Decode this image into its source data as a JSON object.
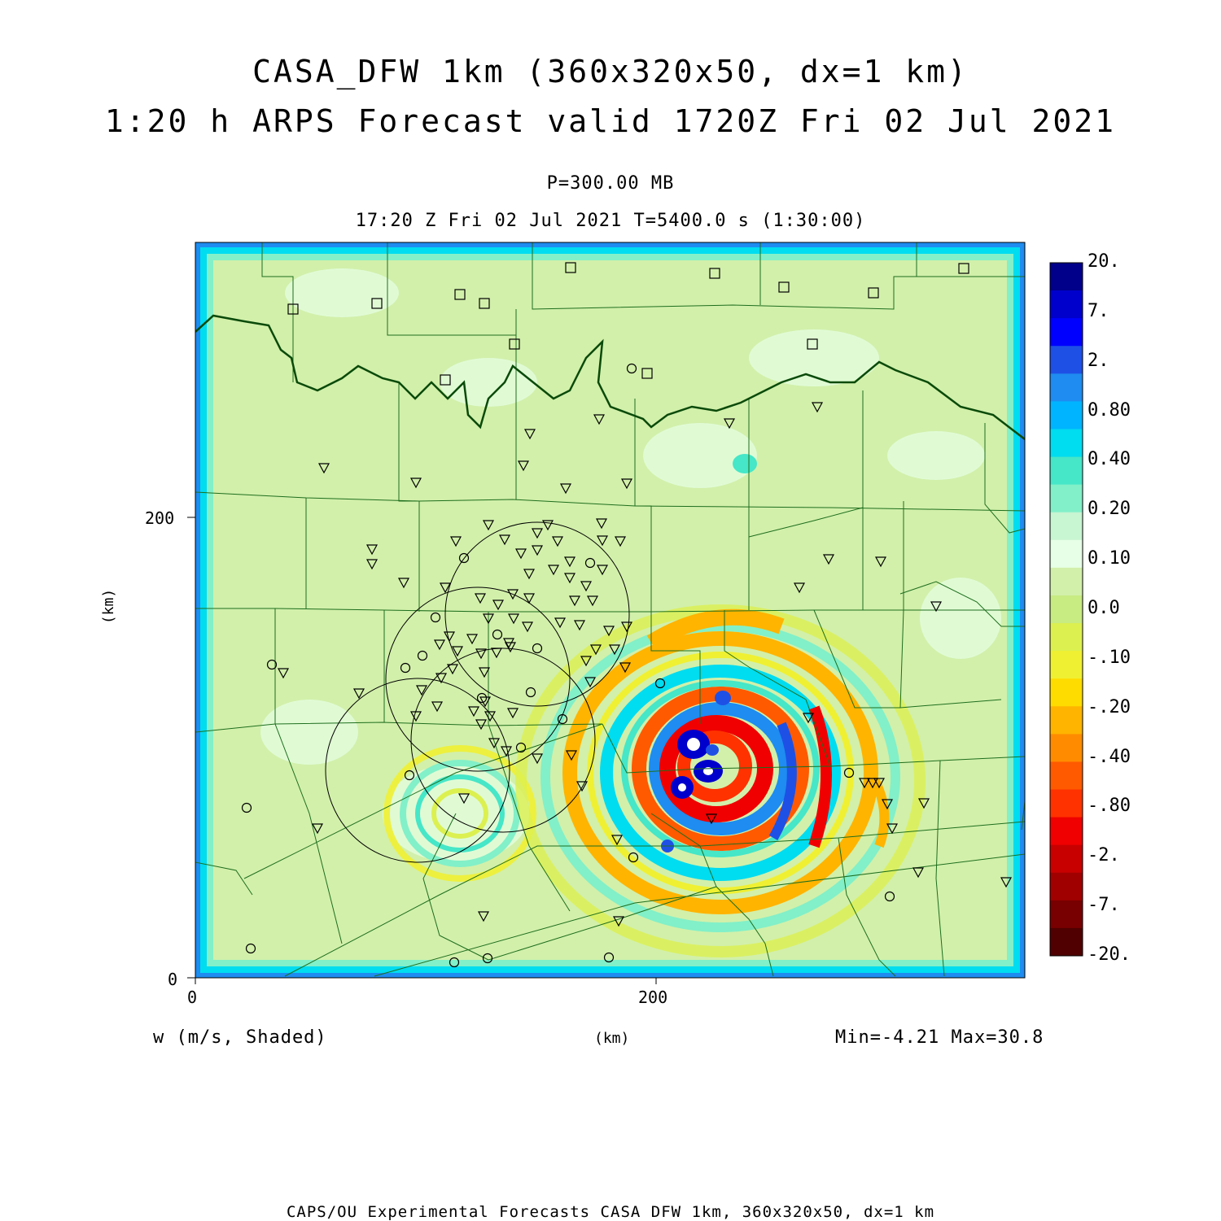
{
  "title": {
    "line1": "CASA_DFW 1km (360x320x50, dx=1 km)",
    "line2": "1:20 h ARPS Forecast valid 1720Z Fri 02 Jul 2021"
  },
  "subtitle": {
    "level": "P=300.00 MB",
    "time": "17:20 Z Fri 02 Jul 2021    T=5400.0 s (1:30:00)"
  },
  "axes": {
    "x_ticks": [
      "0",
      "200"
    ],
    "y_ticks": [
      "0",
      "200"
    ],
    "x_label": "(km)",
    "y_label": "(km)"
  },
  "footer": {
    "variable": "w (m/s, Shaded)",
    "minmax": "Min=-4.21 Max=30.8",
    "credit": "CAPS/OU Experimental Forecasts  CASA DFW 1km, 360x320x50, dx=1 km"
  },
  "colorbar": {
    "labels": [
      "20.",
      "7.",
      "2.",
      "0.80",
      "0.40",
      "0.20",
      "0.10",
      "0.0",
      "-.10",
      "-.20",
      "-.40",
      "-.80",
      "-2.",
      "-7.",
      "-20."
    ],
    "colors": [
      "#00008b",
      "#0000cd",
      "#0000ff",
      "#1e50e6",
      "#1e8cf0",
      "#00b4ff",
      "#00dcf0",
      "#46e6c8",
      "#82f0c8",
      "#c8f5d2",
      "#e6ffe6",
      "#d2f0aa",
      "#c8eb82",
      "#dcf050",
      "#f0f032",
      "#ffdc00",
      "#ffb400",
      "#ff8c00",
      "#ff5a00",
      "#ff3200",
      "#f00000",
      "#c80000",
      "#a00000",
      "#780000",
      "#500000"
    ]
  },
  "map": {
    "x_range_km": [
      0,
      360
    ],
    "y_range_km": [
      0,
      320
    ],
    "background_color": "#d2f0aa",
    "line_color": "#1e6e1e",
    "radar_circle_color": "#000000",
    "storm_center_km": [
      222,
      88
    ]
  }
}
